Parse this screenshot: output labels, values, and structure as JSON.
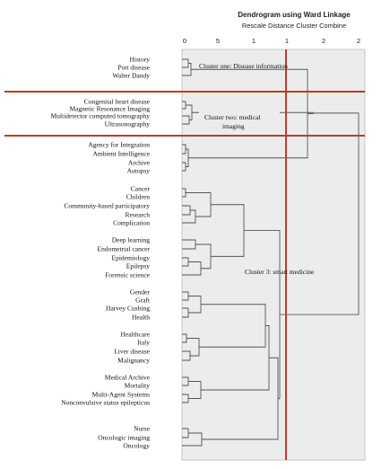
{
  "title": "Dendrogram using Ward Linkage",
  "subtitle": "Rescale Distance Cluster Combine",
  "axis_ticks": [
    "0",
    "5",
    "1",
    "1",
    "2",
    "2"
  ],
  "leaves": [
    "History",
    "Pott disease",
    "Walter Dandy",
    "Congenital heart disease",
    "Magnetic Resonance Imaging",
    "Multidetector computed tomography",
    "Ultrasonography",
    "Agency for Integration",
    "Ambient Intelligence",
    "Archive",
    "Autopsy",
    "Cancer",
    "Children",
    "Community-based participatory",
    "Research",
    "Complication",
    "Deep learning",
    "Endometrial cancer",
    "Epidemiology",
    "Epilepsy",
    "Forensic science",
    "Gender",
    "Graft",
    "Harvey Cushing",
    "Health",
    "Healthcare",
    "Italy",
    "Liver disease",
    "Malignancy",
    "Medical Archive",
    "Mortality",
    "Multi-Agent Systems",
    "Nonconvulsive status epilepticus",
    "Nurse",
    "Oncologic imaging",
    "Oncology"
  ],
  "annotations": [
    "Cluster one: Disease information",
    "Cluster two: medical",
    "imaging",
    "Cluster 3: smart medicine"
  ]
}
